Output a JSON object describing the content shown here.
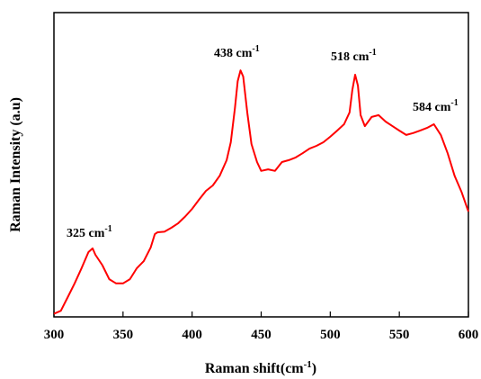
{
  "chart_data": {
    "type": "line",
    "xlabel": {
      "text": "Raman shift(cm",
      "sup": "-1",
      "end": ")"
    },
    "ylabel": "Raman Intensity (a.u)",
    "annotations": [
      {
        "text": "325 cm",
        "sup": "-1"
      },
      {
        "text": "438 cm",
        "sup": "-1"
      },
      {
        "text": "518 cm",
        "sup": "-1"
      },
      {
        "text": "584 cm",
        "sup": "-1"
      }
    ],
    "xlim": [
      300,
      600
    ],
    "xticks": [
      300,
      350,
      400,
      450,
      500,
      550,
      600
    ],
    "ylim": [
      0,
      100
    ],
    "series": [
      {
        "color": "#ff0000",
        "x": [
          300,
          305,
          310,
          315,
          320,
          325,
          328,
          330,
          335,
          340,
          345,
          350,
          355,
          360,
          365,
          370,
          373,
          375,
          380,
          385,
          390,
          395,
          400,
          405,
          410,
          415,
          420,
          425,
          428,
          431,
          433,
          435,
          437,
          440,
          443,
          447,
          450,
          455,
          460,
          465,
          470,
          475,
          480,
          485,
          490,
          495,
          500,
          505,
          510,
          514,
          516,
          518,
          520,
          522,
          525,
          530,
          535,
          540,
          545,
          550,
          555,
          560,
          565,
          570,
          575,
          580,
          585,
          590,
          595,
          600
        ],
        "values": [
          1,
          2,
          6.5,
          11,
          16,
          21.3,
          22.5,
          20.4,
          17,
          12.4,
          11,
          11,
          12.4,
          16,
          18.3,
          22.8,
          27.2,
          27.8,
          28,
          29.3,
          30.8,
          33,
          35.5,
          38.5,
          41.4,
          43.2,
          46.4,
          51.5,
          57.4,
          68.6,
          77.5,
          81,
          79,
          67,
          56.8,
          50.9,
          48,
          48.5,
          48,
          50.9,
          51.5,
          52.4,
          53.8,
          55.3,
          56.2,
          57.4,
          59.2,
          61.2,
          63.3,
          67.2,
          74.6,
          79.6,
          76,
          66.3,
          62.7,
          65.7,
          66.3,
          64.2,
          62.7,
          61.2,
          59.8,
          60.4,
          61.2,
          62.1,
          63.3,
          59.8,
          53.8,
          46.4,
          41.1,
          34.6
        ]
      }
    ]
  }
}
